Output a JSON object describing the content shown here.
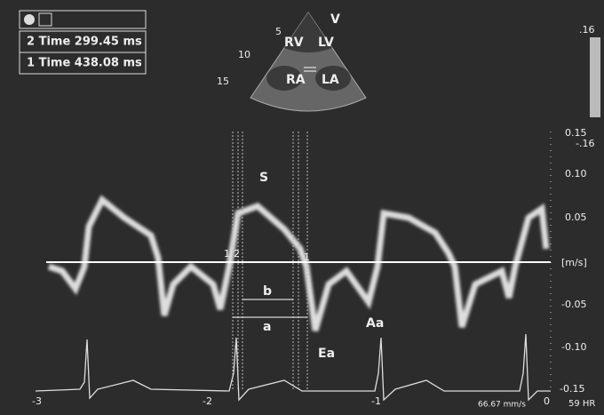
{
  "overlay": {
    "time_2": "2 Time 299.45 ms",
    "time_1": "1 Time 438.08 ms"
  },
  "sector": {
    "depth_marks": [
      "5",
      "10",
      "15"
    ],
    "apex": "V",
    "chambers": [
      "RV",
      "LV",
      "RA",
      "LA"
    ]
  },
  "color_bar": {
    "top": ".16",
    "bottom": "-.16"
  },
  "velocity_scale": {
    "unit": "[m/s]",
    "ticks": [
      "0.15",
      "0.10",
      "0.05",
      "-0.05",
      "-0.10",
      "-0.15"
    ]
  },
  "annotations": {
    "peaks": [
      "S",
      "Ea",
      "Aa"
    ],
    "intervals": [
      "b",
      "a"
    ],
    "cursors": [
      "1",
      "2",
      "1"
    ]
  },
  "ecg": {
    "beat_labels": [
      "-3",
      "-2",
      "-1",
      "0"
    ],
    "sweep": "66.67 mm/s",
    "hr": "59 HR"
  }
}
